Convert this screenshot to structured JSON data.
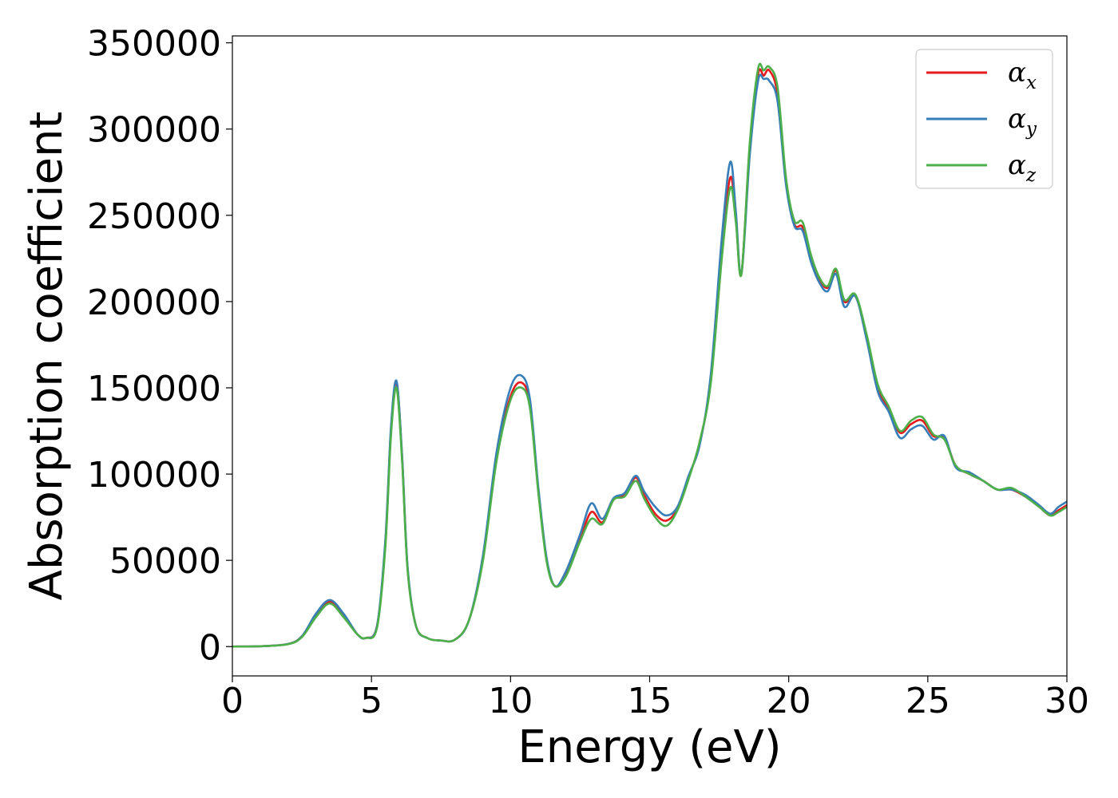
{
  "chart_data": {
    "type": "line",
    "title": "",
    "xlabel": "Energy (eV)",
    "ylabel": "Absorption coefficient",
    "xlim": [
      0,
      30
    ],
    "ylim": [
      -17000,
      354000
    ],
    "xticks": [
      0,
      5,
      10,
      15,
      20,
      25,
      30
    ],
    "yticks": [
      0,
      50000,
      100000,
      150000,
      200000,
      250000,
      300000,
      350000
    ],
    "grid": false,
    "legend_position": "top-right",
    "x": [
      0,
      1,
      2,
      2.5,
      3,
      3.5,
      4,
      4.5,
      4.8,
      5.2,
      5.5,
      5.7,
      5.9,
      6.1,
      6.3,
      6.6,
      7,
      7.5,
      8,
      8.5,
      9,
      9.5,
      10,
      10.4,
      10.7,
      11,
      11.3,
      11.6,
      12,
      12.5,
      12.9,
      13.3,
      13.7,
      14.1,
      14.5,
      14.8,
      15.2,
      15.6,
      16,
      16.4,
      16.8,
      17.2,
      17.6,
      17.9,
      18.1,
      18.3,
      18.6,
      18.9,
      19.1,
      19.3,
      19.6,
      19.9,
      20.2,
      20.5,
      20.8,
      21.1,
      21.4,
      21.7,
      22.0,
      22.4,
      22.8,
      23.2,
      23.6,
      24.0,
      24.4,
      24.8,
      25.2,
      25.6,
      26.0,
      26.5,
      27.0,
      27.5,
      28.0,
      28.5,
      29.0,
      29.4,
      29.7,
      30
    ],
    "series": [
      {
        "name": "x",
        "color": "#e41a1c",
        "values": [
          0,
          200,
          1500,
          6000,
          18000,
          26000,
          18000,
          7000,
          5000,
          12000,
          60000,
          125000,
          153000,
          110000,
          45000,
          12000,
          5000,
          3500,
          4000,
          15000,
          50000,
          110000,
          145000,
          153000,
          140000,
          90000,
          50000,
          35000,
          42000,
          62000,
          78000,
          72000,
          85000,
          88000,
          98000,
          88000,
          77000,
          73000,
          80000,
          98000,
          118000,
          155000,
          230000,
          272000,
          248000,
          216000,
          290000,
          332000,
          331000,
          334000,
          320000,
          270000,
          245000,
          243000,
          225000,
          213000,
          208000,
          218000,
          200000,
          203000,
          180000,
          150000,
          138000,
          124000,
          129000,
          131000,
          122000,
          121000,
          105000,
          100000,
          96000,
          91000,
          91000,
          87000,
          81000,
          76000,
          79000,
          82000
        ]
      },
      {
        "name": "y",
        "color": "#377eb8",
        "values": [
          0,
          200,
          1500,
          6000,
          19000,
          27000,
          19000,
          7000,
          5000,
          12000,
          62000,
          127000,
          154000,
          111000,
          46000,
          12000,
          5000,
          3500,
          4000,
          15000,
          52000,
          113000,
          150000,
          157000,
          143000,
          92000,
          51000,
          35000,
          44000,
          65000,
          83000,
          74000,
          86000,
          89000,
          99000,
          90000,
          81000,
          76000,
          81000,
          99000,
          117000,
          158000,
          238000,
          281000,
          252000,
          216000,
          285000,
          328000,
          329000,
          328000,
          316000,
          268000,
          244000,
          241000,
          223000,
          211000,
          206000,
          216000,
          197000,
          203000,
          178000,
          148000,
          136000,
          121000,
          126000,
          128000,
          120000,
          122000,
          104000,
          101000,
          96000,
          91000,
          91000,
          88000,
          82000,
          77000,
          81000,
          84000
        ]
      },
      {
        "name": "z",
        "color": "#4daf4a",
        "values": [
          0,
          200,
          1400,
          5500,
          17000,
          25000,
          17000,
          7000,
          5000,
          11000,
          58000,
          122000,
          150000,
          108000,
          44000,
          12000,
          5000,
          3500,
          4000,
          15000,
          49000,
          108000,
          143000,
          150000,
          138000,
          89000,
          49000,
          35000,
          41000,
          61000,
          74000,
          71000,
          85000,
          87000,
          96000,
          86000,
          75000,
          70000,
          79000,
          97000,
          119000,
          153000,
          226000,
          266000,
          246000,
          216000,
          292000,
          335000,
          334000,
          336000,
          324000,
          272000,
          247000,
          246000,
          227000,
          214000,
          209000,
          219000,
          201000,
          204000,
          181000,
          152000,
          139000,
          125000,
          131000,
          133000,
          123000,
          120000,
          105000,
          100000,
          96000,
          91000,
          92000,
          87000,
          81000,
          76000,
          78000,
          81000
        ]
      }
    ]
  }
}
